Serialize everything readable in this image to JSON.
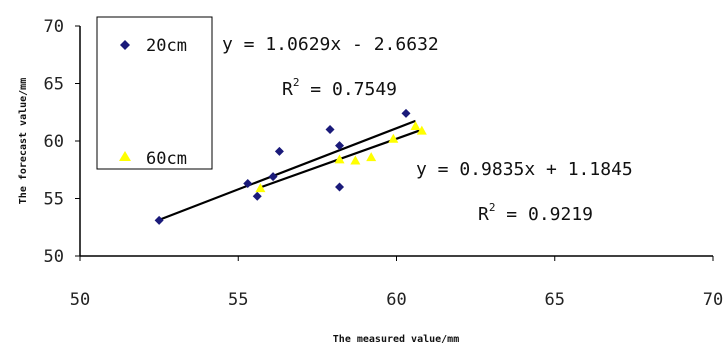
{
  "chart_data": {
    "type": "scatter",
    "xlabel": "The measured value/mm",
    "ylabel": "The forecast value/mm",
    "xlim": [
      50,
      70
    ],
    "ylim": [
      50,
      70
    ],
    "xticks": [
      "50",
      "55",
      "60",
      "65",
      "70"
    ],
    "yticks": [
      "50",
      "55",
      "60",
      "65",
      "70"
    ],
    "grid": false,
    "legend_position": "top-left",
    "series": [
      {
        "name": "20cm",
        "color": "#1a1a7a",
        "marker": "diamond",
        "points": [
          [
            52.5,
            53.1
          ],
          [
            55.3,
            56.3
          ],
          [
            55.6,
            55.2
          ],
          [
            56.1,
            56.9
          ],
          [
            56.3,
            59.1
          ],
          [
            57.9,
            61.0
          ],
          [
            58.2,
            59.6
          ],
          [
            58.2,
            56.0
          ],
          [
            60.3,
            62.4
          ]
        ],
        "trendline": {
          "slope": 1.0629,
          "intercept": -2.6632,
          "x_range": [
            52.5,
            60.6
          ]
        }
      },
      {
        "name": "60cm",
        "color": "#ffff00",
        "marker": "triangle",
        "points": [
          [
            55.7,
            55.9
          ],
          [
            58.2,
            58.4
          ],
          [
            58.7,
            58.3
          ],
          [
            59.2,
            58.6
          ],
          [
            59.9,
            60.2
          ],
          [
            60.6,
            61.3
          ],
          [
            60.8,
            60.9
          ]
        ],
        "trendline": {
          "slope": 0.9835,
          "intercept": 1.1845,
          "x_range": [
            55.7,
            60.8
          ]
        }
      }
    ],
    "annotations": [
      {
        "equation": "y = 1.0629x - 2.6632",
        "r2_prefix": "R",
        "r2_sup": "2",
        "r2_value": " = 0.7549"
      },
      {
        "equation": "y = 0.9835x + 1.1845",
        "r2_prefix": "R",
        "r2_sup": "2",
        "r2_value": " = 0.9219"
      }
    ]
  }
}
